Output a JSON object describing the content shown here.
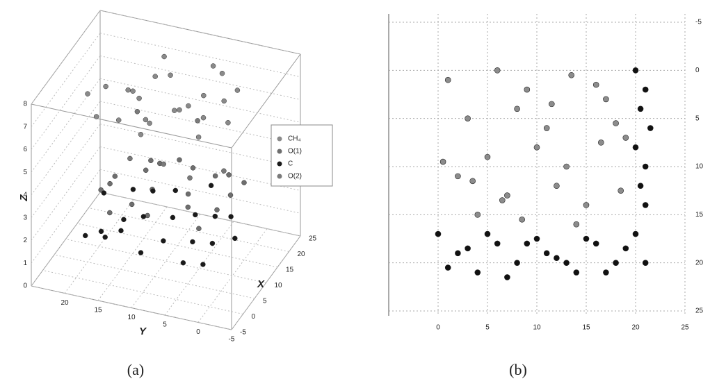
{
  "chart_data": [
    {
      "type": "scatter3d",
      "caption": "(a)",
      "xlabel": "X",
      "ylabel": "Y",
      "zlabel": "Z",
      "xlim": [
        -5,
        25
      ],
      "ylim": [
        -5,
        25
      ],
      "zlim": [
        0,
        8
      ],
      "xticks": [
        -5,
        0,
        5,
        10,
        15,
        20,
        25
      ],
      "yticks": [
        20,
        15,
        10,
        5,
        0,
        -5
      ],
      "zticks": [
        0,
        1,
        2,
        3,
        4,
        5,
        6,
        7,
        8
      ],
      "grid": true,
      "legend": "right",
      "series": [
        {
          "name": "CH₄",
          "color": "#8a8a8a",
          "x": [
            1,
            3,
            5,
            7,
            9,
            11,
            13,
            15,
            17,
            19,
            2,
            6,
            10,
            14,
            18,
            4,
            8,
            12,
            16,
            20,
            0,
            10,
            5,
            15
          ],
          "y": [
            2,
            18,
            7,
            12,
            4,
            16,
            9,
            1,
            14,
            6,
            11,
            3,
            19,
            8,
            13,
            15,
            0,
            10,
            17,
            5,
            9,
            14,
            20,
            3
          ],
          "z": [
            7.2,
            6.8,
            7.5,
            6.5,
            7.8,
            7.0,
            6.3,
            7.4,
            6.9,
            7.6,
            6.6,
            7.3,
            7.1,
            6.4,
            7.7,
            6.7,
            7.0,
            7.9,
            6.2,
            7.2,
            7.5,
            6.9,
            7.4,
            6.8
          ]
        },
        {
          "name": "O(1)",
          "color": "#6e6e6e",
          "x": [
            2,
            4,
            6,
            8,
            10,
            12,
            14,
            16,
            18,
            20,
            1,
            5,
            9,
            13,
            17,
            3,
            7,
            11,
            15,
            19
          ],
          "y": [
            10,
            3,
            17,
            6,
            13,
            1,
            19,
            8,
            15,
            4,
            12,
            18,
            2,
            9,
            5,
            16,
            11,
            7,
            0,
            14
          ],
          "z": [
            3.1,
            2.7,
            3.5,
            2.9,
            3.8,
            3.2,
            2.6,
            3.4,
            3.0,
            2.8,
            3.6,
            3.3,
            2.9,
            4.1,
            3.1,
            2.7,
            3.5,
            3.0,
            3.4,
            2.8
          ]
        },
        {
          "name": "C",
          "color": "#1a1a1a",
          "x": [
            0,
            3,
            6,
            9,
            12,
            15,
            18,
            21,
            2,
            5,
            8,
            11,
            14,
            17,
            20,
            1,
            4,
            7,
            10,
            13,
            16,
            19
          ],
          "y": [
            1,
            5,
            9,
            13,
            17,
            21,
            3,
            7,
            11,
            15,
            19,
            0,
            4,
            8,
            12,
            16,
            20,
            2,
            6,
            10,
            14,
            18
          ],
          "z": [
            1.8,
            1.2,
            1.5,
            1.9,
            1.1,
            1.6,
            1.3,
            2.0,
            1.4,
            1.7,
            1.0,
            1.5,
            1.8,
            1.2,
            1.6,
            1.9,
            1.3,
            1.7,
            1.1,
            1.5,
            2.0,
            1.4
          ]
        },
        {
          "name": "O(2)",
          "color": "#7a7a7a",
          "x": [
            3,
            9,
            15,
            6,
            12,
            18
          ],
          "y": [
            4,
            10,
            16,
            14,
            2,
            8
          ],
          "z": [
            5.0,
            4.4,
            5.5,
            4.8,
            4.2,
            5.2
          ]
        }
      ]
    },
    {
      "type": "scatter",
      "caption": "(b)",
      "xlim": [
        -5,
        25
      ],
      "ylim": [
        -5,
        25
      ],
      "y_inverted": true,
      "xticks": [
        0,
        5,
        10,
        15,
        20,
        25
      ],
      "yticks": [
        -5,
        0,
        5,
        10,
        15,
        20,
        25
      ],
      "grid": true,
      "series": [
        {
          "color": "#8c8c8c",
          "x": [
            1,
            3,
            5,
            7,
            9,
            11,
            13,
            15,
            17,
            19,
            2,
            4,
            6,
            8,
            10,
            12,
            14,
            16,
            18,
            0.5,
            6.5,
            11.5,
            16.5,
            3.5,
            8.5,
            13.5,
            18.5
          ],
          "y": [
            1,
            5,
            9,
            13,
            2,
            6,
            10,
            14,
            3,
            7,
            11,
            15,
            0,
            4,
            8,
            12,
            16,
            1.5,
            5.5,
            9.5,
            13.5,
            3.5,
            7.5,
            11.5,
            15.5,
            0.5,
            12.5
          ]
        },
        {
          "color": "#111111",
          "x": [
            20,
            21,
            20.5,
            21.5,
            20,
            21,
            20.5,
            21,
            0,
            2,
            4,
            6,
            8,
            10,
            12,
            14,
            16,
            18,
            20,
            1,
            3,
            5,
            7,
            9,
            11,
            13,
            15,
            17,
            19,
            21
          ],
          "y": [
            0,
            2,
            4,
            6,
            8,
            10,
            12,
            14,
            17,
            19,
            21,
            18,
            20,
            17.5,
            19.5,
            21,
            18,
            20,
            17,
            20.5,
            18.5,
            17,
            21.5,
            18,
            19,
            20,
            17.5,
            21,
            18.5,
            20
          ]
        }
      ]
    }
  ]
}
